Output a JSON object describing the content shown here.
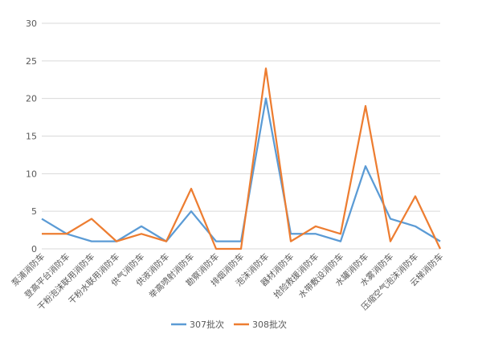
{
  "chart_data": {
    "type": "line",
    "categories": [
      "泵浦消防车",
      "登高平台消防车",
      "干粉泡沫联用消防车",
      "干粉水联用消防车",
      "供气消防车",
      "供液消防车",
      "举高喷射消防车",
      "勘察消防车",
      "排烟消防车",
      "泡沫消防车",
      "器材消防车",
      "抢险救援消防车",
      "水带敷设消防车",
      "水罐消防车",
      "水雾消防车",
      "压缩空气泡沫消防车",
      "云梯消防车"
    ],
    "series": [
      {
        "name": "307批次",
        "color": "#5b9bd5",
        "values": [
          4,
          2,
          1,
          1,
          3,
          1,
          5,
          1,
          1,
          20,
          2,
          2,
          1,
          11,
          4,
          3,
          1
        ]
      },
      {
        "name": "308批次",
        "color": "#ed7d31",
        "values": [
          2,
          2,
          4,
          1,
          2,
          1,
          8,
          0,
          0,
          24,
          1,
          3,
          2,
          19,
          1,
          7,
          0
        ]
      }
    ],
    "ylim": [
      0,
      30
    ],
    "yticks": [
      0,
      5,
      10,
      15,
      20,
      25,
      30
    ],
    "grid": true,
    "legend": "bottom",
    "gridColor": "#d9d9d9"
  }
}
